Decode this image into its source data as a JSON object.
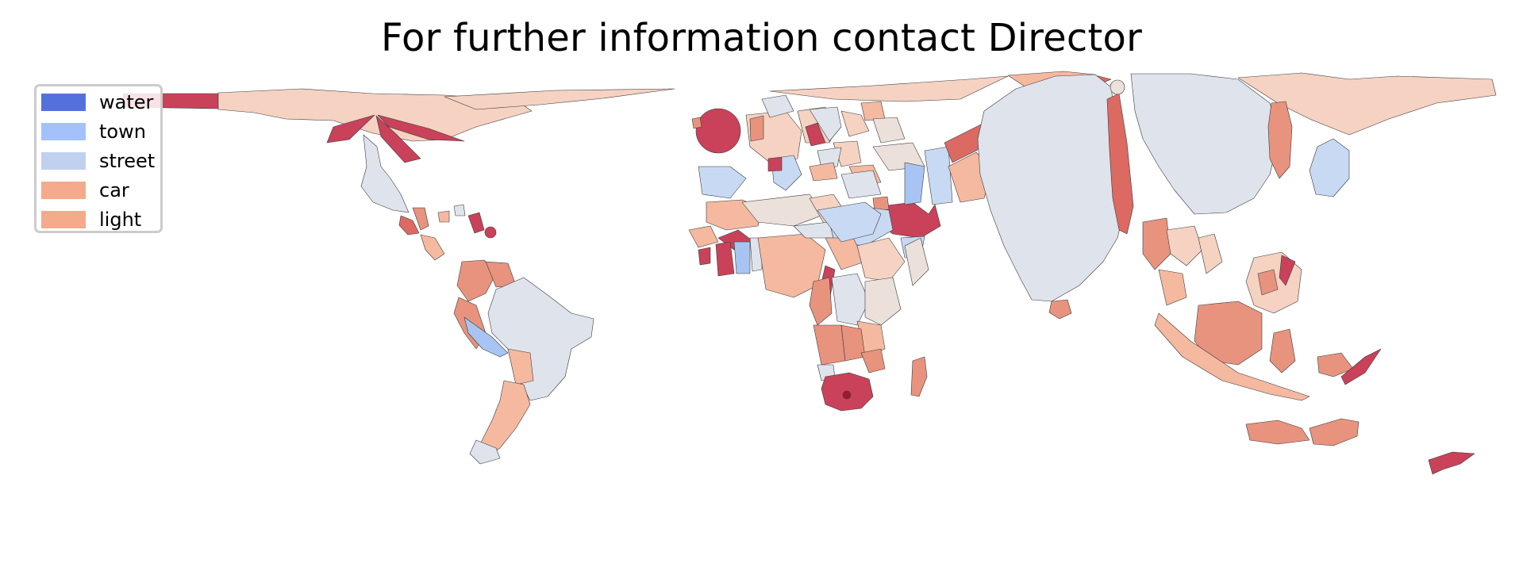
{
  "title": "For further information contact Director",
  "legend": {
    "items": [
      {
        "label": "water",
        "color": "#5470de"
      },
      {
        "label": "town",
        "color": "#a4c1fb"
      },
      {
        "label": "street",
        "color": "#bfd1ef"
      },
      {
        "label": "car",
        "color": "#f4aa8b"
      },
      {
        "label": "light",
        "color": "#f4aa8b"
      }
    ]
  },
  "map": {
    "type": "choropleth cartogram",
    "category_palette": {
      "dark_red": "#c9425a",
      "mid_red": "#dc6a63",
      "salmon": "#e8937e",
      "peach": "#f5b9a0",
      "light_peach": "#f5d2c2",
      "pale_beige": "#ece0da",
      "grey_blue": "#dfe3ec",
      "light_blue": "#c8d9f3",
      "mid_blue": "#a8c4f2"
    }
  }
}
